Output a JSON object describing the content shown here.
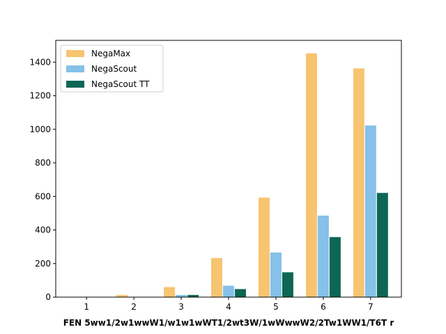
{
  "chart_data": {
    "type": "bar",
    "categories": [
      "1",
      "2",
      "3",
      "4",
      "5",
      "6",
      "7"
    ],
    "series": [
      {
        "name": "NegaMax",
        "color": "#f7c471",
        "values": [
          2,
          15,
          62,
          235,
          595,
          1455,
          1365
        ]
      },
      {
        "name": "NegaScout",
        "color": "#85c1e9",
        "values": [
          1,
          4,
          15,
          70,
          268,
          488,
          1025
        ]
      },
      {
        "name": "NegaScout TT",
        "color": "#0e6655",
        "values": [
          1,
          4,
          15,
          50,
          150,
          360,
          623
        ]
      }
    ],
    "xlabel": "FEN 5ww1/2w1wwW1/w1w1wWT1/2wt3W/1wWwwW2/2Tw1WW1/T6T r",
    "ylabel": "",
    "ylim": [
      0,
      1530
    ],
    "yticks": [
      0,
      200,
      400,
      600,
      800,
      1000,
      1200,
      1400
    ],
    "legend_position": "top-left",
    "grid": false
  }
}
